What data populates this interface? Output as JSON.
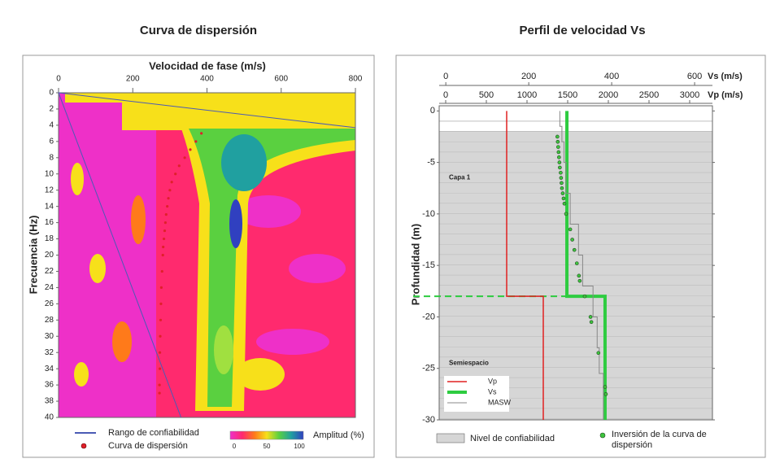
{
  "chart_data": [
    {
      "type": "dispersion",
      "title": "Curva de dispersión",
      "x_label": "Velocidad de fase (m/s)",
      "y_label": "Frecuencia (Hz)",
      "xlim": [
        0,
        800
      ],
      "xticks": [
        0,
        200,
        400,
        600,
        800
      ],
      "ylim": [
        0,
        40
      ],
      "y_inverted": true,
      "yticks": [
        0,
        2,
        4,
        6,
        8,
        10,
        12,
        14,
        16,
        18,
        20,
        22,
        24,
        26,
        28,
        30,
        32,
        34,
        36,
        38,
        40
      ],
      "series": [
        {
          "name": "Rango de confiabilidad",
          "kind": "line",
          "color": "#4b5bb5",
          "x": [
            800,
            0,
            330
          ],
          "y": [
            4.3,
            0,
            40
          ]
        },
        {
          "name": "Curva de dispersión",
          "kind": "dots",
          "color": "#e0202a",
          "x": [
            385,
            370,
            355,
            340,
            325,
            315,
            305,
            300,
            296,
            293,
            290,
            288,
            286,
            284,
            282,
            281,
            279,
            277,
            276,
            275,
            274,
            273,
            273,
            272,
            272
          ],
          "y": [
            5,
            6,
            7,
            8,
            9,
            10,
            11,
            12,
            13,
            14,
            15,
            16,
            17,
            18,
            19,
            20,
            22,
            24,
            26,
            28,
            30,
            32,
            34,
            36,
            37
          ]
        }
      ],
      "colorbar": {
        "label": "Amplitud (%)",
        "lim": [
          0,
          100
        ],
        "ticks": [
          0,
          50,
          100
        ],
        "colors": [
          "#ee30c8",
          "#ff2a6e",
          "#ff7a1a",
          "#f7e01a",
          "#5ad040",
          "#20a0a0",
          "#3040c0"
        ]
      }
    },
    {
      "type": "profile",
      "title": "Perfil de velocidad Vs",
      "y_label": "Profundidad (m)",
      "ylim": [
        -30,
        0.5
      ],
      "yticks": [
        0,
        -5,
        -10,
        -15,
        -20,
        -25,
        -30
      ],
      "vs_axis": {
        "label": "Vs (m/s)",
        "lim": [
          -16,
          643
        ],
        "ticks": [
          0,
          200,
          400,
          600
        ]
      },
      "vp_axis": {
        "label": "Vp (m/s)",
        "lim": [
          -80,
          3280
        ],
        "ticks": [
          0,
          500,
          1000,
          1500,
          2000,
          2500,
          3000
        ]
      },
      "confidence_depth": -2,
      "confidence_label": "Nivel de confiabilidad",
      "halfspace_depth": -18,
      "layers": [
        "Capa 1",
        "Semiespacio"
      ],
      "series": [
        {
          "name": "Vp",
          "kind": "line",
          "axis": "vp",
          "color": "#e02020",
          "width": 1.5,
          "x": [
            750,
            750,
            1200,
            1200
          ],
          "y": [
            0,
            -18,
            -18,
            -30
          ]
        },
        {
          "name": "Vs",
          "kind": "line",
          "axis": "vs",
          "color": "#2ecc40",
          "width": 4,
          "x": [
            292,
            292,
            384,
            384
          ],
          "y": [
            0,
            -18,
            -18,
            -30
          ]
        },
        {
          "name": "MASW",
          "kind": "line",
          "axis": "vs",
          "color": "#888888",
          "width": 1,
          "x": [
            275,
            275,
            280,
            280,
            285,
            285,
            290,
            290,
            300,
            300,
            320,
            320,
            330,
            330,
            355,
            355,
            365,
            365,
            370,
            370,
            380,
            380
          ],
          "y": [
            0,
            -1.5,
            -1.5,
            -3,
            -3,
            -5,
            -5,
            -8,
            -8,
            -11,
            -11,
            -14,
            -14,
            -17,
            -17,
            -20,
            -20,
            -23,
            -23,
            -25.5,
            -25.5,
            -30
          ]
        },
        {
          "name": "Inversión de la curva de dispersión",
          "kind": "dots",
          "axis": "vs",
          "color": "#3ec43e",
          "x": [
            269,
            270,
            271,
            272,
            273,
            274,
            275,
            277,
            278,
            279,
            280,
            282,
            284,
            286,
            290,
            300,
            305,
            310,
            316,
            321,
            323,
            335,
            349,
            351,
            368,
            384,
            386
          ],
          "y": [
            -2.5,
            -3,
            -3.5,
            -4,
            -4.5,
            -5,
            -5.5,
            -6,
            -6.5,
            -7,
            -7.5,
            -8,
            -8.5,
            -9,
            -10,
            -11.5,
            -12.5,
            -13.5,
            -14.8,
            -16,
            -16.5,
            -18,
            -20,
            -20.5,
            -23.5,
            -26.8,
            -27.5
          ]
        }
      ]
    }
  ]
}
